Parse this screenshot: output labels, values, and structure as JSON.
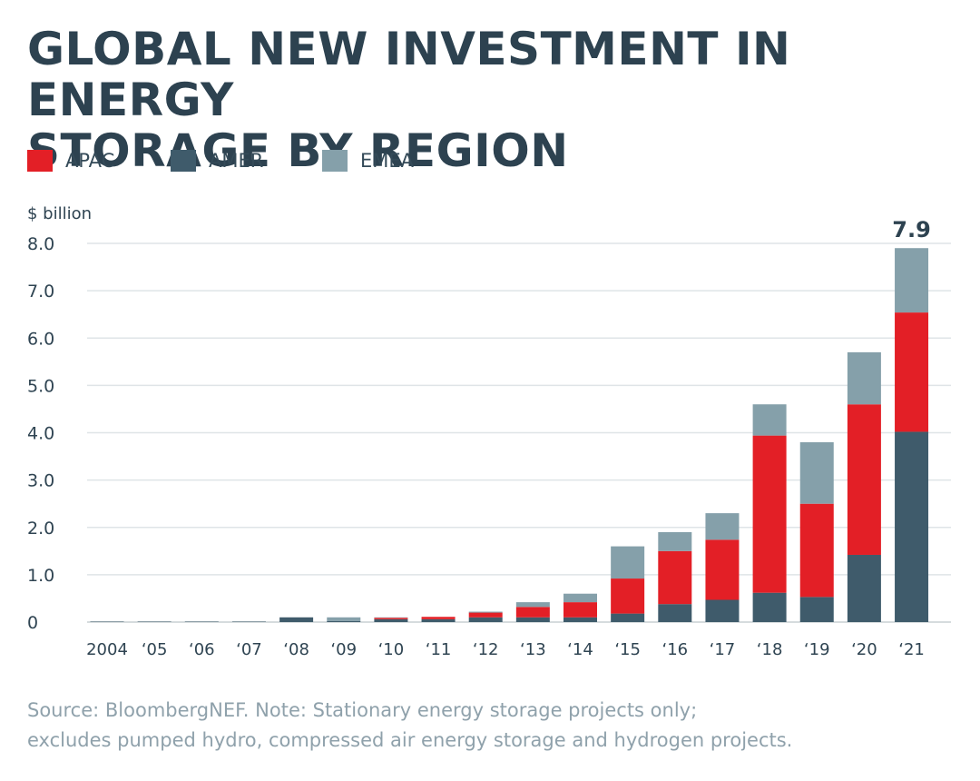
{
  "header": {
    "title_line1": "GLOBAL NEW INVESTMENT IN ENERGY",
    "title_line2": "STORAGE BY REGION"
  },
  "legend": [
    {
      "label": "APAC",
      "color": "#e31f26"
    },
    {
      "label": "AMER",
      "color": "#3f5b6b"
    },
    {
      "label": "EMEA",
      "color": "#85a0aa"
    }
  ],
  "chart_data": {
    "type": "bar",
    "stacked": true,
    "title": "GLOBAL NEW INVESTMENT IN ENERGY STORAGE BY REGION",
    "ylabel": "$ billion",
    "xlabel": "",
    "ylim": [
      0,
      8
    ],
    "yticks": [
      "0",
      "1.0",
      "2.0",
      "3.0",
      "4.0",
      "5.0",
      "6.0",
      "7.0",
      "8.0"
    ],
    "grid": true,
    "legend_position": "top-left",
    "categories": [
      "2004",
      "‘05",
      "‘06",
      "‘07",
      "‘08",
      "‘09",
      "‘10",
      "‘11",
      "‘12",
      "‘13",
      "‘14",
      "‘15",
      "‘16",
      "‘17",
      "‘18",
      "‘19",
      "‘20",
      "‘21"
    ],
    "series": [
      {
        "name": "AMER",
        "color": "#3f5b6b",
        "values": [
          0.01,
          0.01,
          0.01,
          0.01,
          0.1,
          0.02,
          0.06,
          0.06,
          0.1,
          0.1,
          0.1,
          0.18,
          0.38,
          0.47,
          0.62,
          0.53,
          1.42,
          4.02
        ]
      },
      {
        "name": "APAC",
        "color": "#e31f26",
        "values": [
          0.0,
          0.0,
          0.0,
          0.0,
          0.0,
          0.0,
          0.03,
          0.05,
          0.1,
          0.22,
          0.32,
          0.74,
          1.12,
          1.27,
          3.32,
          1.97,
          3.18,
          2.52
        ]
      },
      {
        "name": "EMEA",
        "color": "#85a0aa",
        "values": [
          0.0,
          0.0,
          0.0,
          0.0,
          0.0,
          0.08,
          0.01,
          0.0,
          0.02,
          0.1,
          0.18,
          0.68,
          0.4,
          0.56,
          0.66,
          1.3,
          1.1,
          1.36
        ]
      }
    ],
    "annotations": [
      {
        "category": "‘21",
        "text": "7.9"
      }
    ]
  },
  "source": {
    "line1": "Source: BloombergNEF. Note: Stationary energy storage projects only;",
    "line2": "excludes pumped hydro, compressed air energy storage and hydrogen projects."
  }
}
